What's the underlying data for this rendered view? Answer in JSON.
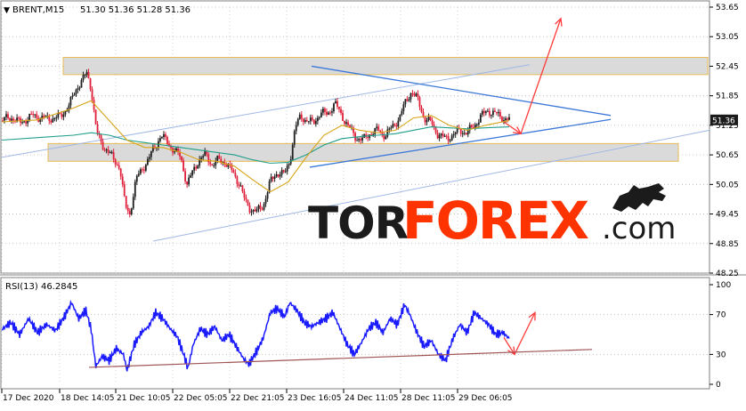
{
  "header": {
    "symbol": "BRENT,M15",
    "ohlc": "51.30 51.36 51.28 51.36"
  },
  "rsi_header": "RSI(13) 46.2845",
  "watermark": {
    "tor": "TOR",
    "forex": "FOREX",
    "com": ".com"
  },
  "colors": {
    "bull": "#1f1f1f",
    "bear": "#e0203a",
    "ma_fast": "#d7a418",
    "ma_slow": "#1f9e8a",
    "rsi_line": "#1a1aff",
    "trend_blue": "#3c78d8",
    "arrow_red": "#ff3b3b",
    "zone_fill": "#d9d9d9",
    "zone_border": "#e6b84a",
    "rsi_trend": "#a05555"
  },
  "chart_data": [
    {
      "type": "candlestick",
      "title": "BRENT,M15",
      "ylim": [
        48.25,
        53.65
      ],
      "y_ticks": [
        "53.65",
        "53.05",
        "52.45",
        "51.85",
        "51.25",
        "50.65",
        "50.05",
        "49.45",
        "48.85",
        "48.25"
      ],
      "current_price": "51.36",
      "x_ticks": [
        "17 Dec 2020",
        "18 Dec 14:05",
        "21 Dec 10:05",
        "22 Dec 05:05",
        "22 Dec 21:05",
        "23 Dec 16:05",
        "24 Dec 11:05",
        "28 Dec 11:05",
        "29 Dec 06:05"
      ],
      "price_path": [
        [
          0,
          51.35
        ],
        [
          10,
          51.42
        ],
        [
          20,
          51.3
        ],
        [
          35,
          51.45
        ],
        [
          50,
          51.38
        ],
        [
          65,
          51.42
        ],
        [
          75,
          51.65
        ],
        [
          85,
          52.05
        ],
        [
          95,
          52.3
        ],
        [
          100,
          52.0
        ],
        [
          106,
          51.1
        ],
        [
          112,
          50.85
        ],
        [
          118,
          50.75
        ],
        [
          125,
          50.55
        ],
        [
          132,
          50.4
        ],
        [
          138,
          49.6
        ],
        [
          143,
          49.45
        ],
        [
          150,
          50.15
        ],
        [
          158,
          50.4
        ],
        [
          165,
          50.6
        ],
        [
          172,
          50.85
        ],
        [
          178,
          51.05
        ],
        [
          185,
          50.9
        ],
        [
          192,
          50.75
        ],
        [
          200,
          50.6
        ],
        [
          207,
          50.05
        ],
        [
          212,
          50.25
        ],
        [
          220,
          50.55
        ],
        [
          228,
          50.65
        ],
        [
          235,
          50.45
        ],
        [
          242,
          50.55
        ],
        [
          250,
          50.5
        ],
        [
          258,
          50.3
        ],
        [
          266,
          50.05
        ],
        [
          272,
          49.7
        ],
        [
          278,
          49.55
        ],
        [
          285,
          49.5
        ],
        [
          292,
          49.62
        ],
        [
          300,
          50.1
        ],
        [
          308,
          50.3
        ],
        [
          316,
          50.25
        ],
        [
          322,
          50.55
        ],
        [
          328,
          51.2
        ],
        [
          334,
          51.45
        ],
        [
          340,
          51.35
        ],
        [
          348,
          51.3
        ],
        [
          356,
          51.5
        ],
        [
          364,
          51.48
        ],
        [
          372,
          51.7
        ],
        [
          380,
          51.45
        ],
        [
          388,
          51.2
        ],
        [
          396,
          51.0
        ],
        [
          404,
          50.95
        ],
        [
          412,
          51.1
        ],
        [
          420,
          51.15
        ],
        [
          428,
          51.05
        ],
        [
          436,
          51.2
        ],
        [
          444,
          51.4
        ],
        [
          452,
          51.75
        ],
        [
          458,
          51.95
        ],
        [
          465,
          51.75
        ],
        [
          472,
          51.4
        ],
        [
          480,
          51.3
        ],
        [
          488,
          51.05
        ],
        [
          496,
          50.98
        ],
        [
          504,
          51.05
        ],
        [
          512,
          51.15
        ],
        [
          520,
          51.1
        ],
        [
          528,
          51.25
        ],
        [
          536,
          51.45
        ],
        [
          544,
          51.55
        ],
        [
          552,
          51.48
        ],
        [
          560,
          51.4
        ],
        [
          567,
          51.36
        ]
      ],
      "ma_fast_path": [
        [
          0,
          51.32
        ],
        [
          40,
          51.36
        ],
        [
          80,
          51.6
        ],
        [
          100,
          51.75
        ],
        [
          120,
          51.35
        ],
        [
          140,
          50.95
        ],
        [
          160,
          50.8
        ],
        [
          180,
          50.8
        ],
        [
          200,
          50.7
        ],
        [
          220,
          50.55
        ],
        [
          240,
          50.52
        ],
        [
          260,
          50.42
        ],
        [
          280,
          50.15
        ],
        [
          300,
          49.9
        ],
        [
          320,
          50.1
        ],
        [
          340,
          50.6
        ],
        [
          360,
          51.05
        ],
        [
          380,
          51.25
        ],
        [
          400,
          51.15
        ],
        [
          420,
          51.1
        ],
        [
          440,
          51.15
        ],
        [
          460,
          51.4
        ],
        [
          480,
          51.45
        ],
        [
          500,
          51.25
        ],
        [
          520,
          51.15
        ],
        [
          540,
          51.25
        ],
        [
          567,
          51.35
        ]
      ],
      "ma_slow_path": [
        [
          0,
          50.95
        ],
        [
          40,
          51.0
        ],
        [
          80,
          51.05
        ],
        [
          100,
          51.1
        ],
        [
          120,
          51.05
        ],
        [
          140,
          50.95
        ],
        [
          160,
          50.9
        ],
        [
          180,
          50.85
        ],
        [
          200,
          50.8
        ],
        [
          220,
          50.75
        ],
        [
          240,
          50.7
        ],
        [
          260,
          50.65
        ],
        [
          280,
          50.55
        ],
        [
          300,
          50.48
        ],
        [
          320,
          50.5
        ],
        [
          340,
          50.65
        ],
        [
          360,
          50.85
        ],
        [
          380,
          50.98
        ],
        [
          400,
          51.02
        ],
        [
          420,
          51.05
        ],
        [
          440,
          51.08
        ],
        [
          460,
          51.15
        ],
        [
          480,
          51.22
        ],
        [
          500,
          51.2
        ],
        [
          520,
          51.18
        ],
        [
          540,
          51.2
        ],
        [
          567,
          51.22
        ]
      ]
    },
    {
      "type": "line",
      "title": "RSI(13) 46.2845",
      "ylim": [
        0,
        100
      ],
      "y_ticks": [
        "100",
        "70",
        "30",
        "0"
      ],
      "values_path": [
        [
          0,
          55
        ],
        [
          10,
          62
        ],
        [
          20,
          50
        ],
        [
          30,
          66
        ],
        [
          40,
          52
        ],
        [
          50,
          60
        ],
        [
          60,
          54
        ],
        [
          70,
          68
        ],
        [
          78,
          82
        ],
        [
          86,
          66
        ],
        [
          94,
          74
        ],
        [
          100,
          55
        ],
        [
          105,
          18
        ],
        [
          112,
          28
        ],
        [
          120,
          24
        ],
        [
          128,
          36
        ],
        [
          136,
          30
        ],
        [
          140,
          14
        ],
        [
          148,
          40
        ],
        [
          156,
          52
        ],
        [
          164,
          58
        ],
        [
          172,
          72
        ],
        [
          180,
          66
        ],
        [
          188,
          56
        ],
        [
          196,
          48
        ],
        [
          204,
          28
        ],
        [
          208,
          16
        ],
        [
          214,
          40
        ],
        [
          222,
          56
        ],
        [
          230,
          50
        ],
        [
          238,
          58
        ],
        [
          246,
          44
        ],
        [
          254,
          50
        ],
        [
          262,
          38
        ],
        [
          270,
          26
        ],
        [
          276,
          20
        ],
        [
          284,
          32
        ],
        [
          292,
          46
        ],
        [
          300,
          72
        ],
        [
          308,
          76
        ],
        [
          316,
          68
        ],
        [
          322,
          82
        ],
        [
          330,
          74
        ],
        [
          338,
          62
        ],
        [
          346,
          58
        ],
        [
          354,
          62
        ],
        [
          362,
          66
        ],
        [
          370,
          72
        ],
        [
          378,
          56
        ],
        [
          386,
          40
        ],
        [
          394,
          30
        ],
        [
          402,
          42
        ],
        [
          410,
          56
        ],
        [
          418,
          62
        ],
        [
          426,
          52
        ],
        [
          434,
          66
        ],
        [
          442,
          60
        ],
        [
          450,
          80
        ],
        [
          456,
          70
        ],
        [
          464,
          52
        ],
        [
          472,
          38
        ],
        [
          480,
          44
        ],
        [
          488,
          30
        ],
        [
          496,
          24
        ],
        [
          504,
          46
        ],
        [
          512,
          60
        ],
        [
          520,
          52
        ],
        [
          528,
          72
        ],
        [
          536,
          66
        ],
        [
          544,
          60
        ],
        [
          552,
          50
        ],
        [
          560,
          52
        ],
        [
          567,
          46
        ]
      ]
    }
  ]
}
